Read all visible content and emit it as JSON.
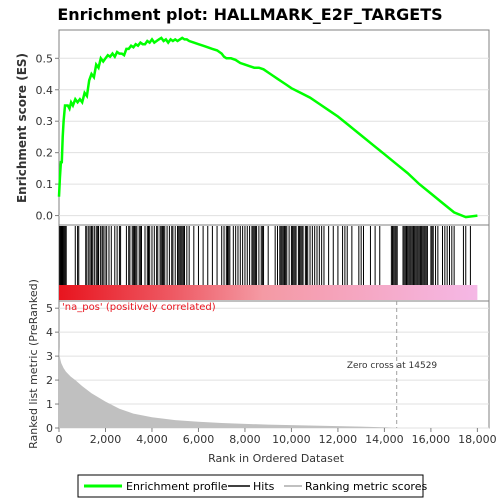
{
  "chart_data": {
    "type": "line",
    "title": "Enrichment plot: HALLMARK_E2F_TARGETS",
    "es_panel": {
      "ylabel": "Enrichment score (ES)",
      "ylim": [
        -0.03,
        0.59
      ],
      "yticks": [
        0.0,
        0.1,
        0.2,
        0.3,
        0.4,
        0.5
      ],
      "ytick_labels": [
        "0.0",
        "0.1",
        "0.2",
        "0.3",
        "0.4",
        "0.5"
      ],
      "series": [
        {
          "name": "Enrichment profile",
          "color": "#00ff00",
          "x": [
            0,
            40,
            80,
            120,
            160,
            200,
            260,
            320,
            380,
            450,
            520,
            600,
            700,
            800,
            900,
            1000,
            1100,
            1200,
            1300,
            1400,
            1500,
            1600,
            1700,
            1800,
            1900,
            2000,
            2100,
            2200,
            2300,
            2400,
            2500,
            2600,
            2700,
            2800,
            2900,
            3000,
            3100,
            3200,
            3300,
            3400,
            3500,
            3600,
            3700,
            3800,
            3900,
            4000,
            4100,
            4200,
            4300,
            4400,
            4500,
            4600,
            4700,
            4800,
            4900,
            5000,
            5100,
            5200,
            5300,
            5400,
            5500,
            5600,
            5800,
            6000,
            6200,
            6400,
            6600,
            6800,
            7000,
            7100,
            7200,
            7300,
            7400,
            7600,
            7800,
            8000,
            8200,
            8400,
            8600,
            8800,
            9000,
            9200,
            9400,
            9600,
            9800,
            10000,
            10400,
            10800,
            11200,
            11600,
            12000,
            12500,
            13000,
            13500,
            14000,
            14500,
            15000,
            15500,
            16000,
            16500,
            17000,
            17500,
            18000
          ],
          "y": [
            0.06,
            0.12,
            0.17,
            0.17,
            0.25,
            0.3,
            0.35,
            0.35,
            0.35,
            0.34,
            0.36,
            0.35,
            0.37,
            0.36,
            0.37,
            0.36,
            0.39,
            0.38,
            0.43,
            0.45,
            0.44,
            0.48,
            0.47,
            0.5,
            0.49,
            0.5,
            0.51,
            0.505,
            0.515,
            0.505,
            0.52,
            0.515,
            0.515,
            0.51,
            0.53,
            0.53,
            0.54,
            0.535,
            0.545,
            0.54,
            0.55,
            0.545,
            0.545,
            0.555,
            0.55,
            0.56,
            0.55,
            0.555,
            0.56,
            0.565,
            0.555,
            0.56,
            0.55,
            0.56,
            0.555,
            0.56,
            0.555,
            0.56,
            0.565,
            0.56,
            0.56,
            0.555,
            0.55,
            0.545,
            0.54,
            0.535,
            0.53,
            0.525,
            0.515,
            0.505,
            0.5,
            0.5,
            0.5,
            0.495,
            0.485,
            0.48,
            0.475,
            0.47,
            0.47,
            0.465,
            0.455,
            0.445,
            0.435,
            0.425,
            0.415,
            0.405,
            0.39,
            0.375,
            0.355,
            0.335,
            0.315,
            0.285,
            0.255,
            0.225,
            0.195,
            0.165,
            0.135,
            0.1,
            0.07,
            0.04,
            0.01,
            -0.005,
            0.0
          ]
        }
      ]
    },
    "hits": [
      30,
      60,
      90,
      120,
      150,
      190,
      230,
      270,
      310,
      700,
      800,
      850,
      1150,
      1200,
      1280,
      1340,
      1400,
      1450,
      1520,
      1600,
      1650,
      1700,
      1780,
      1850,
      1900,
      1980,
      2050,
      2150,
      2250,
      2400,
      2500,
      2600,
      2650,
      2900,
      3000,
      3050,
      3150,
      3200,
      3250,
      3300,
      3350,
      3450,
      3500,
      3550,
      3700,
      3800,
      3850,
      3900,
      4000,
      4100,
      4200,
      4250,
      4350,
      4400,
      4450,
      4500,
      4550,
      4650,
      4750,
      4850,
      4900,
      5000,
      5100,
      5150,
      5200,
      5250,
      5300,
      5350,
      5400,
      5500,
      5600,
      5800,
      6000,
      6200,
      6400,
      6600,
      6800,
      7000,
      7100,
      7200,
      7250,
      7300,
      7350,
      7500,
      7600,
      7700,
      7800,
      7900,
      8000,
      8100,
      8200,
      8300,
      8350,
      8400,
      8450,
      8500,
      8600,
      8700,
      8750,
      8800,
      9000,
      9300,
      9400,
      9500,
      9550,
      9600,
      9650,
      9700,
      9750,
      9800,
      9900,
      10000,
      10050,
      10100,
      10150,
      10200,
      10300,
      10350,
      10400,
      10450,
      10500,
      10600,
      10650,
      10700,
      10800,
      10900,
      11000,
      11100,
      11200,
      11300,
      11400,
      11600,
      11800,
      12000,
      12200,
      12300,
      12400,
      12600,
      12900,
      13000,
      13100,
      13400,
      13600,
      13800,
      14300,
      14350,
      14400,
      14450,
      14500,
      14550,
      14800,
      14850,
      14900,
      14950,
      15000,
      15050,
      15100,
      15150,
      15200,
      15250,
      15300,
      15350,
      15400,
      15450,
      15500,
      15550,
      15600,
      15650,
      15700,
      15750,
      15800,
      15850,
      16000,
      16050,
      16100,
      16200,
      16300,
      16500,
      16600,
      16700,
      16800,
      16900,
      17000,
      17400,
      17500,
      17700
    ],
    "ranked_metric": {
      "ylabel": "Ranked list metric (PreRanked)",
      "ylim": [
        0,
        5.3
      ],
      "yticks": [
        0,
        1,
        2,
        3,
        4,
        5
      ],
      "ytick_labels": [
        "0",
        "1",
        "2",
        "3",
        "4",
        "5"
      ],
      "x": [
        0,
        10,
        30,
        60,
        100,
        150,
        200,
        300,
        400,
        500,
        700,
        1000,
        1400,
        2000,
        2600,
        3200,
        4000,
        5000,
        6000,
        7000,
        8000,
        9000,
        10000,
        11000,
        12000,
        13000,
        14000,
        14529,
        15000,
        16000,
        17000,
        18000
      ],
      "y": [
        3.4,
        3.2,
        3.0,
        2.85,
        2.7,
        2.6,
        2.5,
        2.35,
        2.25,
        2.15,
        2.0,
        1.75,
        1.45,
        1.1,
        0.8,
        0.6,
        0.45,
        0.33,
        0.26,
        0.21,
        0.17,
        0.14,
        0.12,
        0.1,
        0.08,
        0.06,
        0.03,
        0.0,
        -0.02,
        -0.04,
        -0.06,
        -0.08
      ],
      "color": "#c0c0c0",
      "zero_cross_x": 14529,
      "annotations": {
        "positive_label": "'na_pos' (positively correlated)",
        "zero_cross_label": "Zero cross at 14529"
      }
    },
    "xaxis": {
      "label": "Rank in Ordered Dataset",
      "xlim": [
        0,
        18500
      ],
      "xticks": [
        0,
        2000,
        4000,
        6000,
        8000,
        10000,
        12000,
        14000,
        16000,
        18000
      ],
      "xtick_labels": [
        "0",
        "2,000",
        "4,000",
        "6,000",
        "8,000",
        "10,000",
        "12,000",
        "14,000",
        "16,000",
        "18,000"
      ]
    },
    "legend": {
      "position": "bottom",
      "items": [
        {
          "label": "Enrichment profile",
          "color": "#00ff00"
        },
        {
          "label": "Hits",
          "color": "#000000"
        },
        {
          "label": "Ranking metric scores",
          "color": "#c0c0c0"
        }
      ]
    },
    "colors": {
      "es_line": "#00ff00",
      "hit": "#000000",
      "heat_start": "#e8141e",
      "heat_mid": "#f5a0b4",
      "heat_end": "#f5b8e6",
      "zero_line": "#a0a0a0",
      "positive_label": "#e8141e"
    }
  }
}
